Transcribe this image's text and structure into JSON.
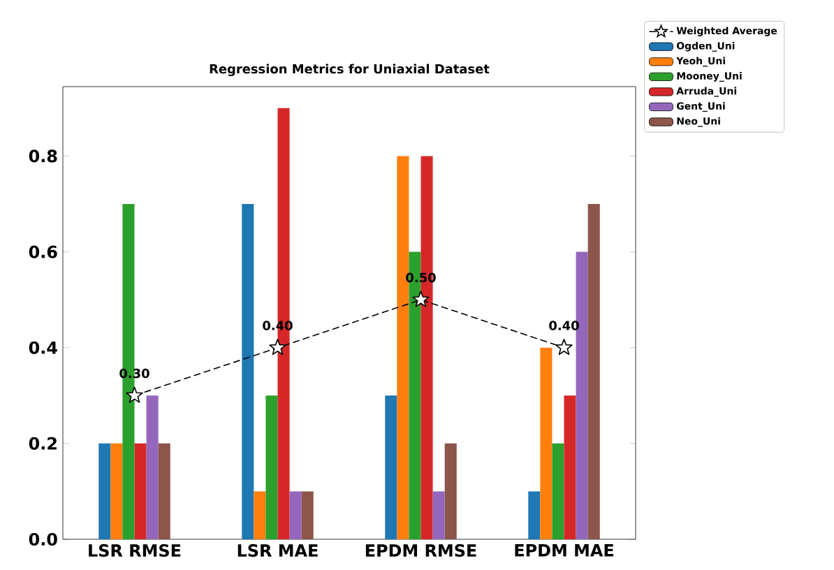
{
  "chart_data": {
    "type": "bar",
    "title": "Regression Metrics for Uniaxial Dataset",
    "categories": [
      "LSR  RMSE",
      "LSR  MAE",
      "EPDM  RMSE",
      "EPDM  MAE"
    ],
    "series": [
      {
        "name": "Weighted Average",
        "type": "line",
        "color": "#000000",
        "marker": "star",
        "line_style": "dashed",
        "values": [
          0.3,
          0.4,
          0.5,
          0.4
        ],
        "value_labels": [
          "0.30",
          "0.40",
          "0.50",
          "0.40"
        ]
      },
      {
        "name": "Ogden_Uni",
        "color": "#1f77b4",
        "values": [
          0.2,
          0.7,
          0.3,
          0.1
        ]
      },
      {
        "name": "Yeoh_Uni",
        "color": "#ff7f0e",
        "values": [
          0.2,
          0.1,
          0.8,
          0.4
        ]
      },
      {
        "name": "Mooney_Uni",
        "color": "#2ca02c",
        "values": [
          0.7,
          0.3,
          0.6,
          0.2
        ]
      },
      {
        "name": "Arruda_Uni",
        "color": "#d62728",
        "values": [
          0.2,
          0.9,
          0.8,
          0.3
        ]
      },
      {
        "name": "Gent_Uni",
        "color": "#9467bd",
        "values": [
          0.3,
          0.1,
          0.1,
          0.6
        ]
      },
      {
        "name": "Neo_Uni",
        "color": "#8c564b",
        "values": [
          0.2,
          0.1,
          0.2,
          0.7
        ]
      }
    ],
    "ylim": [
      0,
      0.945
    ],
    "yticks": [
      {
        "value": 0,
        "label": "0.0"
      },
      0.2,
      0.4,
      0.6,
      0.8
    ],
    "grid": false,
    "legend": "top right"
  }
}
